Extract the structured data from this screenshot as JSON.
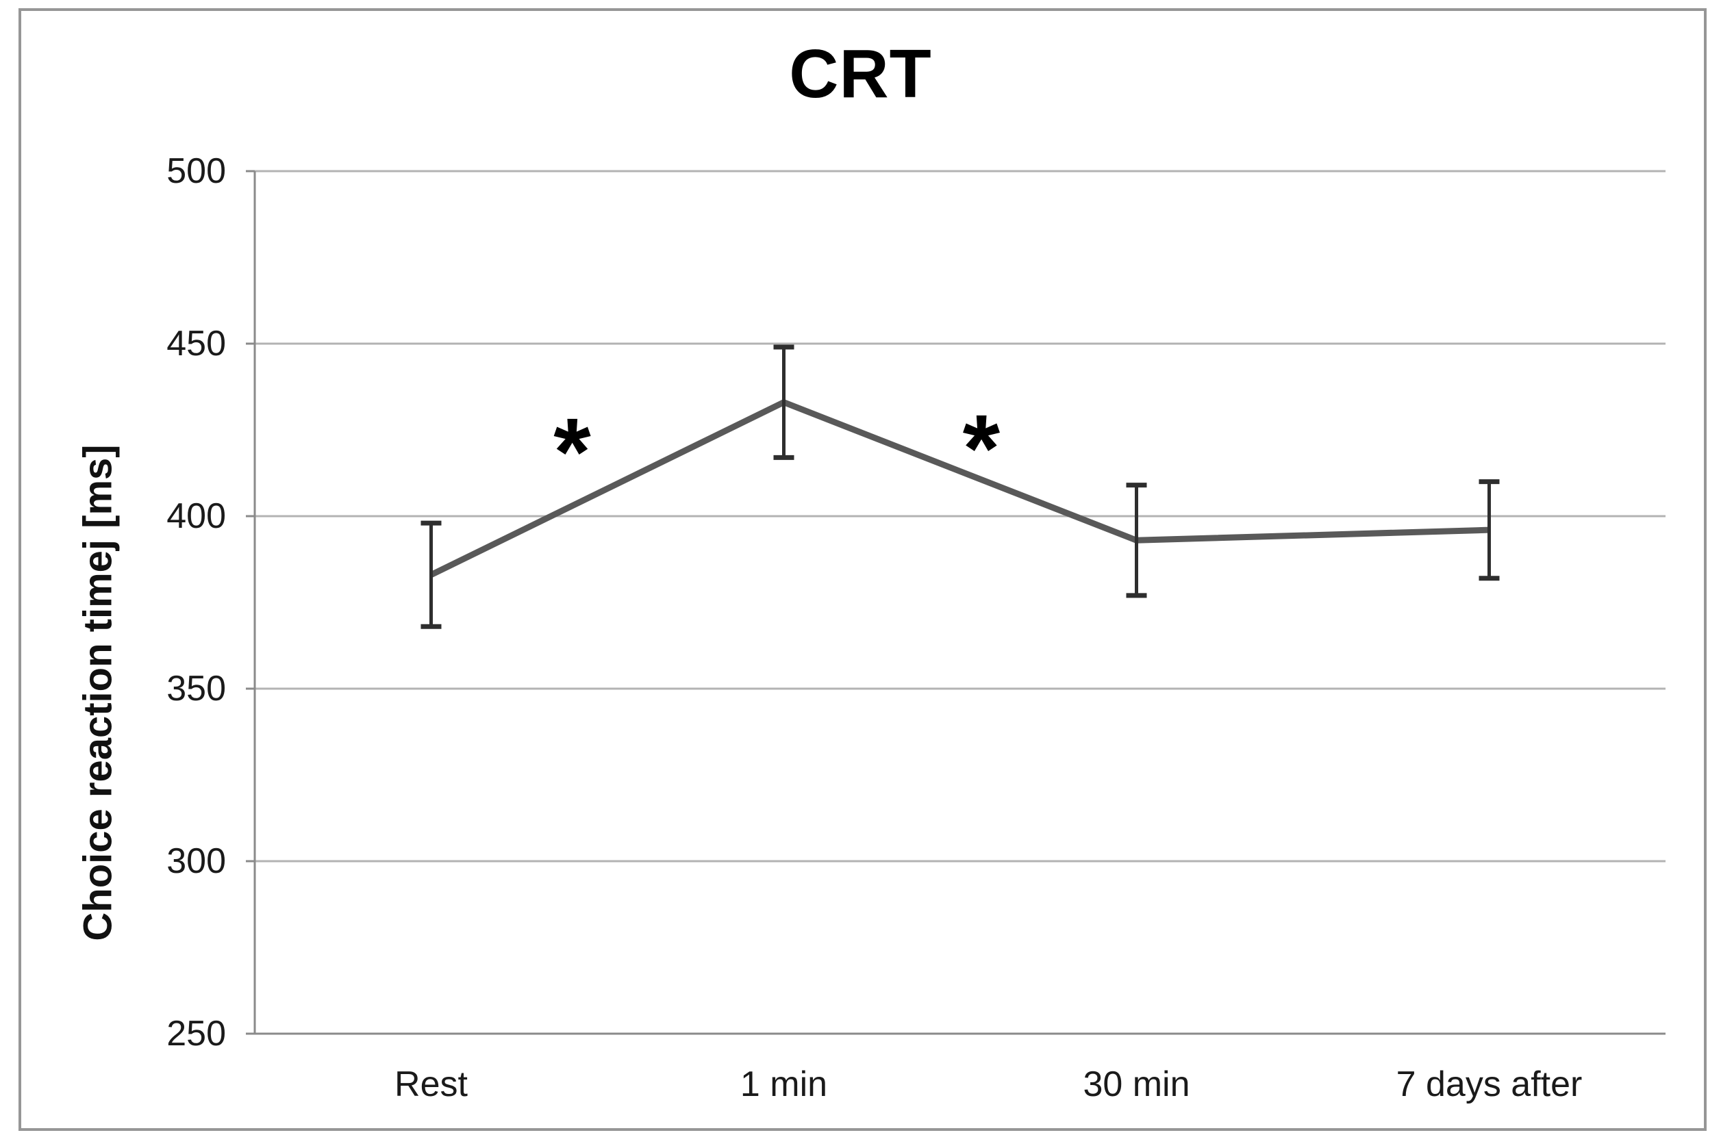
{
  "chart_data": {
    "type": "line",
    "title": "CRT",
    "xlabel": "",
    "ylabel": "Choice reaction timej [ms]",
    "categories": [
      "Rest",
      "1 min",
      "30 min",
      "7 days after"
    ],
    "series": [
      {
        "name": "CRT",
        "values": [
          383,
          433,
          393,
          396
        ],
        "error_upper": [
          15,
          16,
          16,
          14
        ],
        "error_lower": [
          15,
          16,
          16,
          14
        ]
      }
    ],
    "ylim": [
      250,
      500
    ],
    "yticks": [
      250,
      300,
      350,
      400,
      450,
      500
    ],
    "ytick_interval": 50,
    "grid": "horizontal",
    "legend": "none",
    "annotations": [
      {
        "text": "*",
        "x_position": 0.4,
        "y_value": 422
      },
      {
        "text": "*",
        "x_position": 1.56,
        "y_value": 423
      }
    ],
    "colors": {
      "line": "#595959",
      "error_bar": "#2e2e2e",
      "gridline": "#b3b3b3",
      "axis": "#8a8a8a",
      "frame": "#969696",
      "tick_text": "#1a1a1a",
      "title_text": "#000000",
      "annotation": "#000000",
      "background": "#ffffff"
    }
  }
}
